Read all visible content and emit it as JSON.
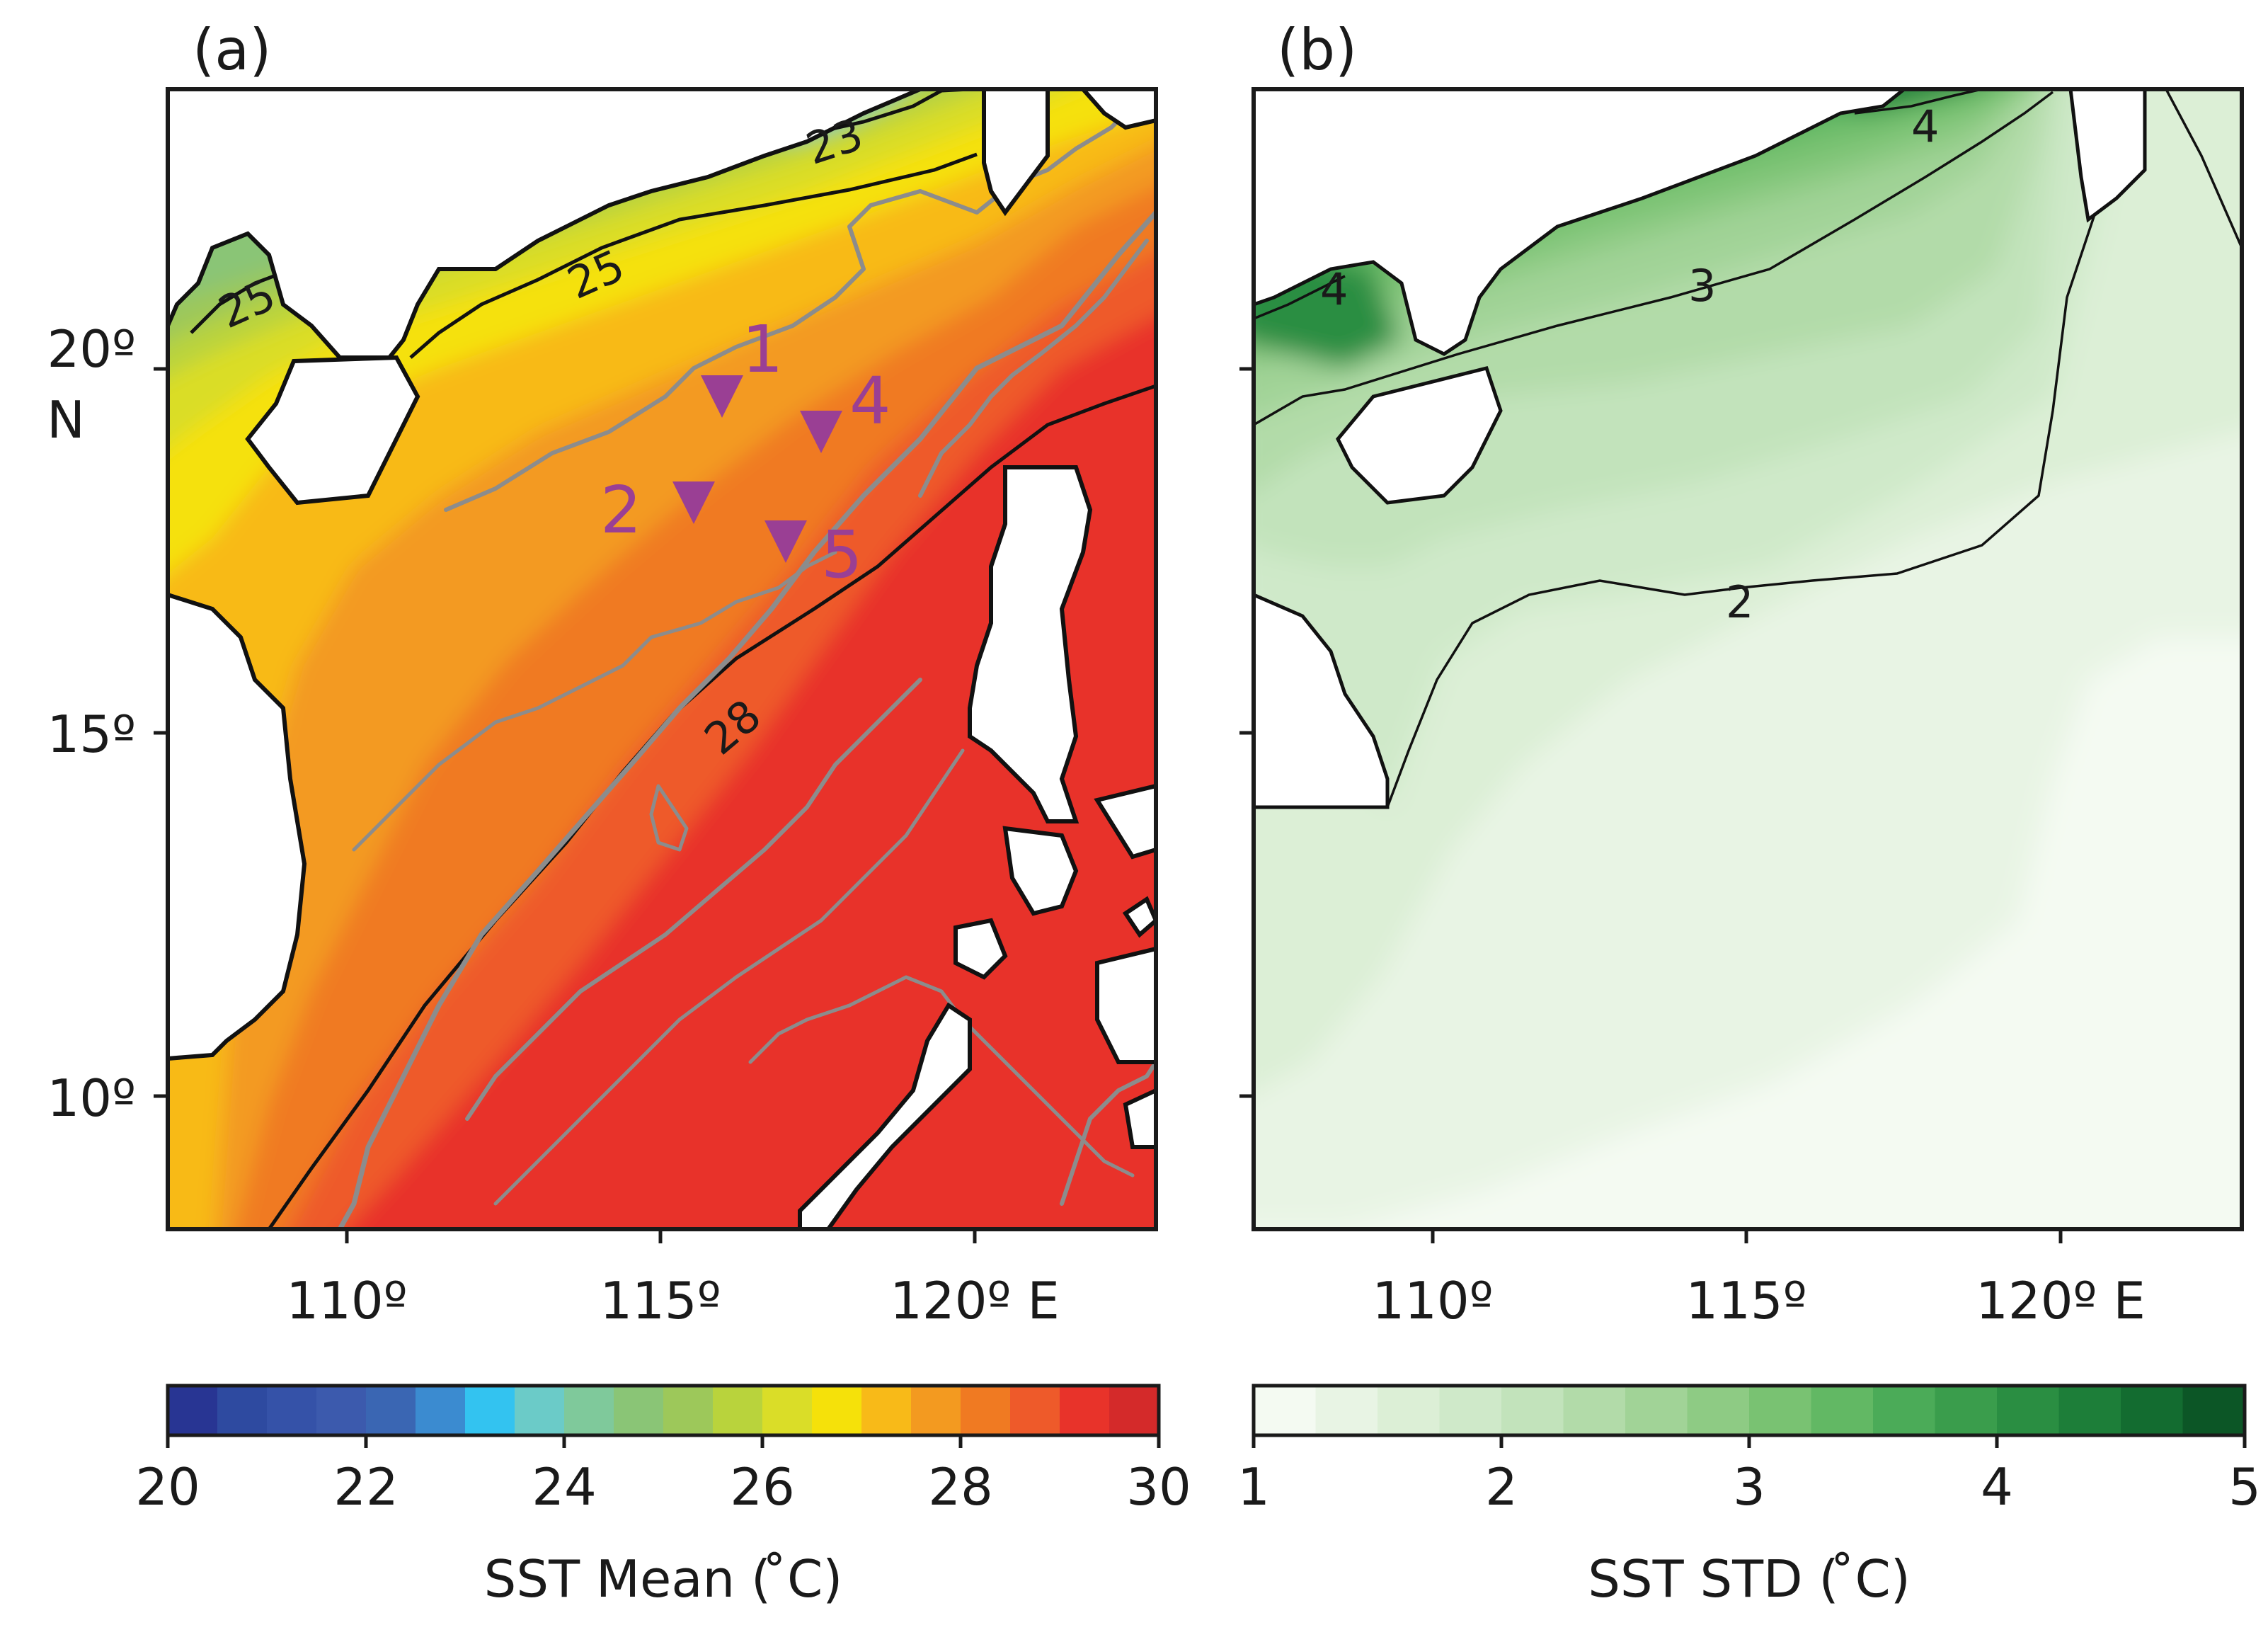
{
  "panel_a": {
    "label": "(a)",
    "colorbar": {
      "title": "SST Mean ( ̊C)",
      "ticks": [
        "20",
        "22",
        "24",
        "26",
        "28",
        "30"
      ],
      "levels": [
        20,
        20.5,
        21,
        21.5,
        22,
        22.5,
        23,
        23.5,
        24,
        24.5,
        25,
        25.5,
        26,
        26.5,
        27,
        27.5,
        28,
        28.5,
        29,
        29.5,
        30
      ],
      "colors": [
        "#283593",
        "#2e4aa0",
        "#3552a8",
        "#3c5aad",
        "#3a66b3",
        "#3b8bd0",
        "#33c3f0",
        "#6bcbc8",
        "#7fc99b",
        "#8ac576",
        "#9dc85a",
        "#b9d33c",
        "#dadd28",
        "#f5e10a",
        "#f8ba18",
        "#f39a20",
        "#f07a22",
        "#ee5a2a",
        "#e8332a",
        "#d42a2a",
        "#a02022"
      ]
    },
    "contour_labels": [
      "23",
      "25",
      "25",
      "28"
    ],
    "stations": [
      "1",
      "2",
      "4",
      "5"
    ],
    "station_color": "#9a3f94"
  },
  "panel_b": {
    "label": "(b)",
    "colorbar": {
      "title": "SST STD ( ̊C)",
      "ticks": [
        "1",
        "2",
        "3",
        "4",
        "5"
      ],
      "levels": [
        1,
        1.25,
        1.5,
        1.75,
        2,
        2.25,
        2.5,
        2.75,
        3,
        3.25,
        3.5,
        3.75,
        4,
        4.25,
        4.5,
        4.75,
        5
      ],
      "colors": [
        "#f4faf2",
        "#e8f4e4",
        "#dcefd6",
        "#cfe9c9",
        "#c2e3bb",
        "#b2dba9",
        "#a1d397",
        "#8ecb84",
        "#79c272",
        "#62b864",
        "#4bab58",
        "#3a9d4c",
        "#2a8e42",
        "#1d7e39",
        "#136c30",
        "#0c5626"
      ]
    },
    "contour_labels": [
      "4",
      "4",
      "3",
      "2"
    ]
  },
  "axes": {
    "x_ticks": [
      "110º",
      "115º",
      "120º E"
    ],
    "y_ticks": [
      "20º",
      "N",
      "15º",
      "10º"
    ],
    "lon_range": [
      107.2,
      122.9
    ],
    "lat_range": [
      8.2,
      23.9
    ]
  },
  "colors": {
    "bathymetry_contour": "#8c8c8c",
    "land": "#ffffff",
    "frame": "#1a1a1a"
  }
}
